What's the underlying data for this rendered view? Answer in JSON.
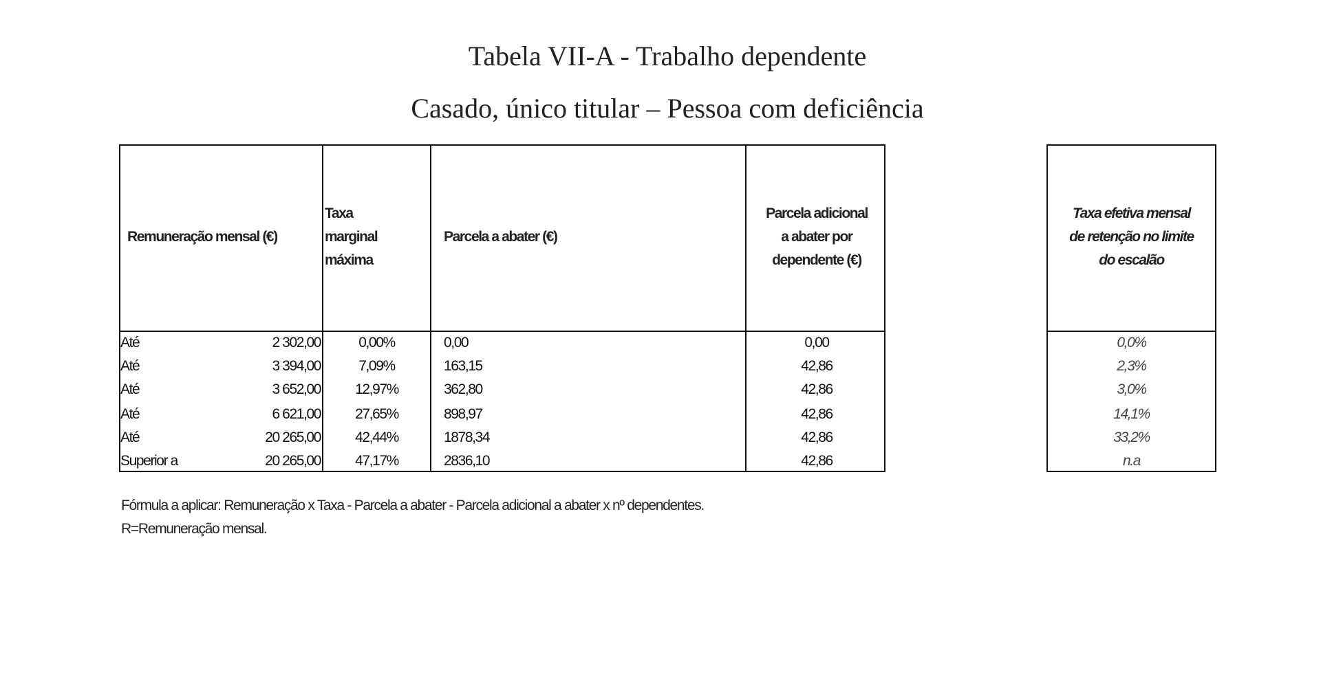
{
  "title": "Tabela VII-A - Trabalho dependente",
  "subtitle": "Casado, único titular – Pessoa com deficiência",
  "table": {
    "headers": {
      "remuneracao": "Remuneração mensal (€)",
      "taxa_lines": [
        "Taxa",
        "marginal",
        "máxima"
      ],
      "parcela": "Parcela a abater (€)",
      "adicional_lines": [
        "Parcela adicional",
        "a abater por",
        "dependente (€)"
      ]
    },
    "rows": [
      {
        "prefix": "Até",
        "limite": "2 302,00",
        "taxa": "0,00%",
        "parcela": "0,00",
        "adicional": "0,00"
      },
      {
        "prefix": "Até",
        "limite": "3 394,00",
        "taxa": "7,09%",
        "parcela": "163,15",
        "adicional": "42,86"
      },
      {
        "prefix": "Até",
        "limite": "3 652,00",
        "taxa": "12,97%",
        "parcela": "362,80",
        "adicional": "42,86"
      },
      {
        "prefix": "Até",
        "limite": "6 621,00",
        "taxa": "27,65%",
        "parcela": "898,97",
        "adicional": "42,86"
      },
      {
        "prefix": "Até",
        "limite": "20 265,00",
        "taxa": "42,44%",
        "parcela": "1878,34",
        "adicional": "42,86"
      },
      {
        "prefix": "Superior a",
        "limite": "20 265,00",
        "taxa": "47,17%",
        "parcela": "2836,10",
        "adicional": "42,86"
      }
    ]
  },
  "effective": {
    "header_lines": [
      "Taxa efetiva mensal",
      "de retenção no limite",
      "do escalão"
    ],
    "values": [
      "0,0%",
      "2,3%",
      "3,0%",
      "14,1%",
      "33,2%",
      "n.a"
    ]
  },
  "footer": {
    "formula": "Fórmula a aplicar: Remuneração x Taxa - Parcela a abater - Parcela adicional a abater x nº dependentes.",
    "note": "R=Remuneração mensal."
  }
}
